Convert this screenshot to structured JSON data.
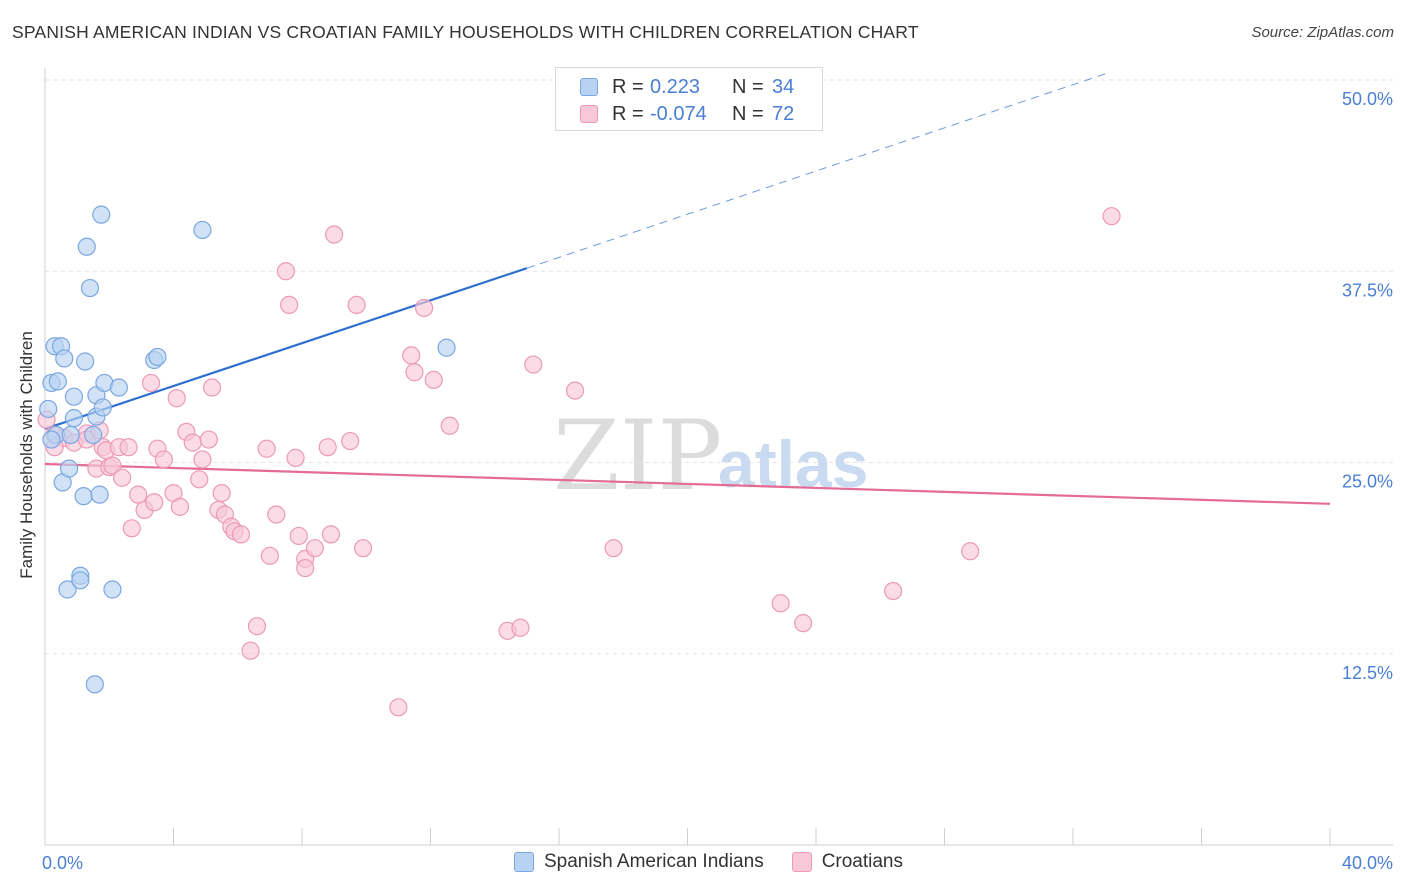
{
  "title": "SPANISH AMERICAN INDIAN VS CROATIAN FAMILY HOUSEHOLDS WITH CHILDREN CORRELATION CHART",
  "source": "Source: ZipAtlas.com",
  "watermark": {
    "zip": "ZIP",
    "atlas": "atlas"
  },
  "legend_top": {
    "rows": [
      {
        "r_label": "R =",
        "r_value": "0.223",
        "n_label": "N =",
        "n_value": "34"
      },
      {
        "r_label": "R =",
        "r_value": "-0.074",
        "n_label": "N =",
        "n_value": "72"
      }
    ]
  },
  "legend_bottom": {
    "items": [
      "Spanish American Indians",
      "Croatians"
    ]
  },
  "colors": {
    "blue_fill": "#b8d2f2",
    "blue_stroke": "#7aa7e0",
    "blue_line": "#2f6fcf",
    "pink_fill": "#f8c8d8",
    "pink_stroke": "#ec9ab6",
    "pink_line": "#e46b94",
    "value_text": "#4a7fd4",
    "grid": "#e3e3e3"
  },
  "chart_data": {
    "type": "scatter",
    "title": "SPANISH AMERICAN INDIAN VS CROATIAN FAMILY HOUSEHOLDS WITH CHILDREN CORRELATION CHART",
    "xlabel": "",
    "ylabel": "Family Households with Children",
    "xlim": [
      0,
      40
    ],
    "ylim": [
      0,
      50
    ],
    "x_tick_labels": [
      "0.0%",
      "40.0%"
    ],
    "y_ticks": [
      12.5,
      25.0,
      37.5,
      50.0
    ],
    "y_tick_labels": [
      "12.5%",
      "25.0%",
      "37.5%",
      "50.0%"
    ],
    "series": [
      {
        "name": "Spanish American Indians",
        "R": 0.223,
        "N": 34,
        "trend": {
          "x0": 0,
          "y0": 27.2,
          "x1": 15.0,
          "y1": 37.7,
          "dash_to_x": 33.0,
          "dash_to_y": 50.4
        },
        "points": [
          [
            0.1,
            28.5
          ],
          [
            0.2,
            30.2
          ],
          [
            0.3,
            32.6
          ],
          [
            0.35,
            26.8
          ],
          [
            0.4,
            30.3
          ],
          [
            0.5,
            32.6
          ],
          [
            0.55,
            23.7
          ],
          [
            0.6,
            31.8
          ],
          [
            0.7,
            16.7
          ],
          [
            0.75,
            24.6
          ],
          [
            0.8,
            26.8
          ],
          [
            0.9,
            29.3
          ],
          [
            0.9,
            27.9
          ],
          [
            1.1,
            17.6
          ],
          [
            1.1,
            17.3
          ],
          [
            1.2,
            22.8
          ],
          [
            1.25,
            31.6
          ],
          [
            1.3,
            39.1
          ],
          [
            1.4,
            36.4
          ],
          [
            1.5,
            26.8
          ],
          [
            1.55,
            10.5
          ],
          [
            1.6,
            28.0
          ],
          [
            1.6,
            29.4
          ],
          [
            1.7,
            22.9
          ],
          [
            1.75,
            41.2
          ],
          [
            1.8,
            28.6
          ],
          [
            1.85,
            30.2
          ],
          [
            2.1,
            16.7
          ],
          [
            2.3,
            29.9
          ],
          [
            3.4,
            31.7
          ],
          [
            3.5,
            31.9
          ],
          [
            4.9,
            40.2
          ],
          [
            12.5,
            32.5
          ],
          [
            0.2,
            26.5
          ]
        ]
      },
      {
        "name": "Croatians",
        "R": -0.074,
        "N": 72,
        "trend": {
          "x0": 0,
          "y0": 24.9,
          "x1": 40,
          "y1": 22.3
        },
        "points": [
          [
            0.05,
            27.8
          ],
          [
            0.3,
            26.8
          ],
          [
            0.6,
            26.6
          ],
          [
            0.9,
            26.3
          ],
          [
            1.3,
            26.9
          ],
          [
            1.3,
            26.5
          ],
          [
            1.6,
            24.6
          ],
          [
            1.7,
            27.1
          ],
          [
            1.8,
            26.0
          ],
          [
            1.9,
            25.8
          ],
          [
            2.0,
            24.7
          ],
          [
            2.1,
            24.8
          ],
          [
            2.3,
            26.0
          ],
          [
            2.4,
            24.0
          ],
          [
            2.6,
            26.0
          ],
          [
            2.7,
            20.7
          ],
          [
            2.9,
            22.9
          ],
          [
            3.1,
            21.9
          ],
          [
            3.3,
            30.2
          ],
          [
            3.4,
            22.4
          ],
          [
            3.5,
            25.9
          ],
          [
            3.7,
            25.2
          ],
          [
            4.0,
            23.0
          ],
          [
            4.1,
            29.2
          ],
          [
            4.2,
            22.1
          ],
          [
            4.4,
            27.0
          ],
          [
            4.6,
            26.3
          ],
          [
            4.8,
            23.9
          ],
          [
            4.9,
            25.2
          ],
          [
            5.1,
            26.5
          ],
          [
            5.2,
            29.9
          ],
          [
            5.4,
            21.9
          ],
          [
            5.5,
            23.0
          ],
          [
            5.6,
            21.6
          ],
          [
            5.8,
            20.8
          ],
          [
            5.9,
            20.5
          ],
          [
            6.1,
            20.3
          ],
          [
            6.4,
            12.7
          ],
          [
            6.6,
            14.3
          ],
          [
            6.9,
            25.9
          ],
          [
            7.0,
            18.9
          ],
          [
            7.2,
            21.6
          ],
          [
            7.5,
            37.5
          ],
          [
            7.6,
            35.3
          ],
          [
            7.8,
            25.3
          ],
          [
            7.9,
            20.2
          ],
          [
            8.1,
            18.7
          ],
          [
            8.1,
            18.1
          ],
          [
            8.4,
            19.4
          ],
          [
            8.8,
            26.0
          ],
          [
            8.9,
            20.3
          ],
          [
            9.0,
            39.9
          ],
          [
            9.5,
            26.4
          ],
          [
            9.7,
            35.3
          ],
          [
            9.9,
            19.4
          ],
          [
            11.0,
            9.0
          ],
          [
            11.4,
            32.0
          ],
          [
            11.5,
            30.9
          ],
          [
            11.8,
            35.1
          ],
          [
            12.1,
            30.4
          ],
          [
            12.6,
            27.4
          ],
          [
            14.4,
            14.0
          ],
          [
            14.8,
            14.2
          ],
          [
            15.2,
            31.4
          ],
          [
            16.5,
            29.7
          ],
          [
            17.7,
            19.4
          ],
          [
            22.9,
            15.8
          ],
          [
            23.6,
            14.5
          ],
          [
            26.4,
            16.6
          ],
          [
            28.8,
            19.2
          ],
          [
            33.2,
            41.1
          ],
          [
            0.3,
            26.0
          ]
        ]
      }
    ]
  },
  "y_axis_title": "Family Households with Children"
}
